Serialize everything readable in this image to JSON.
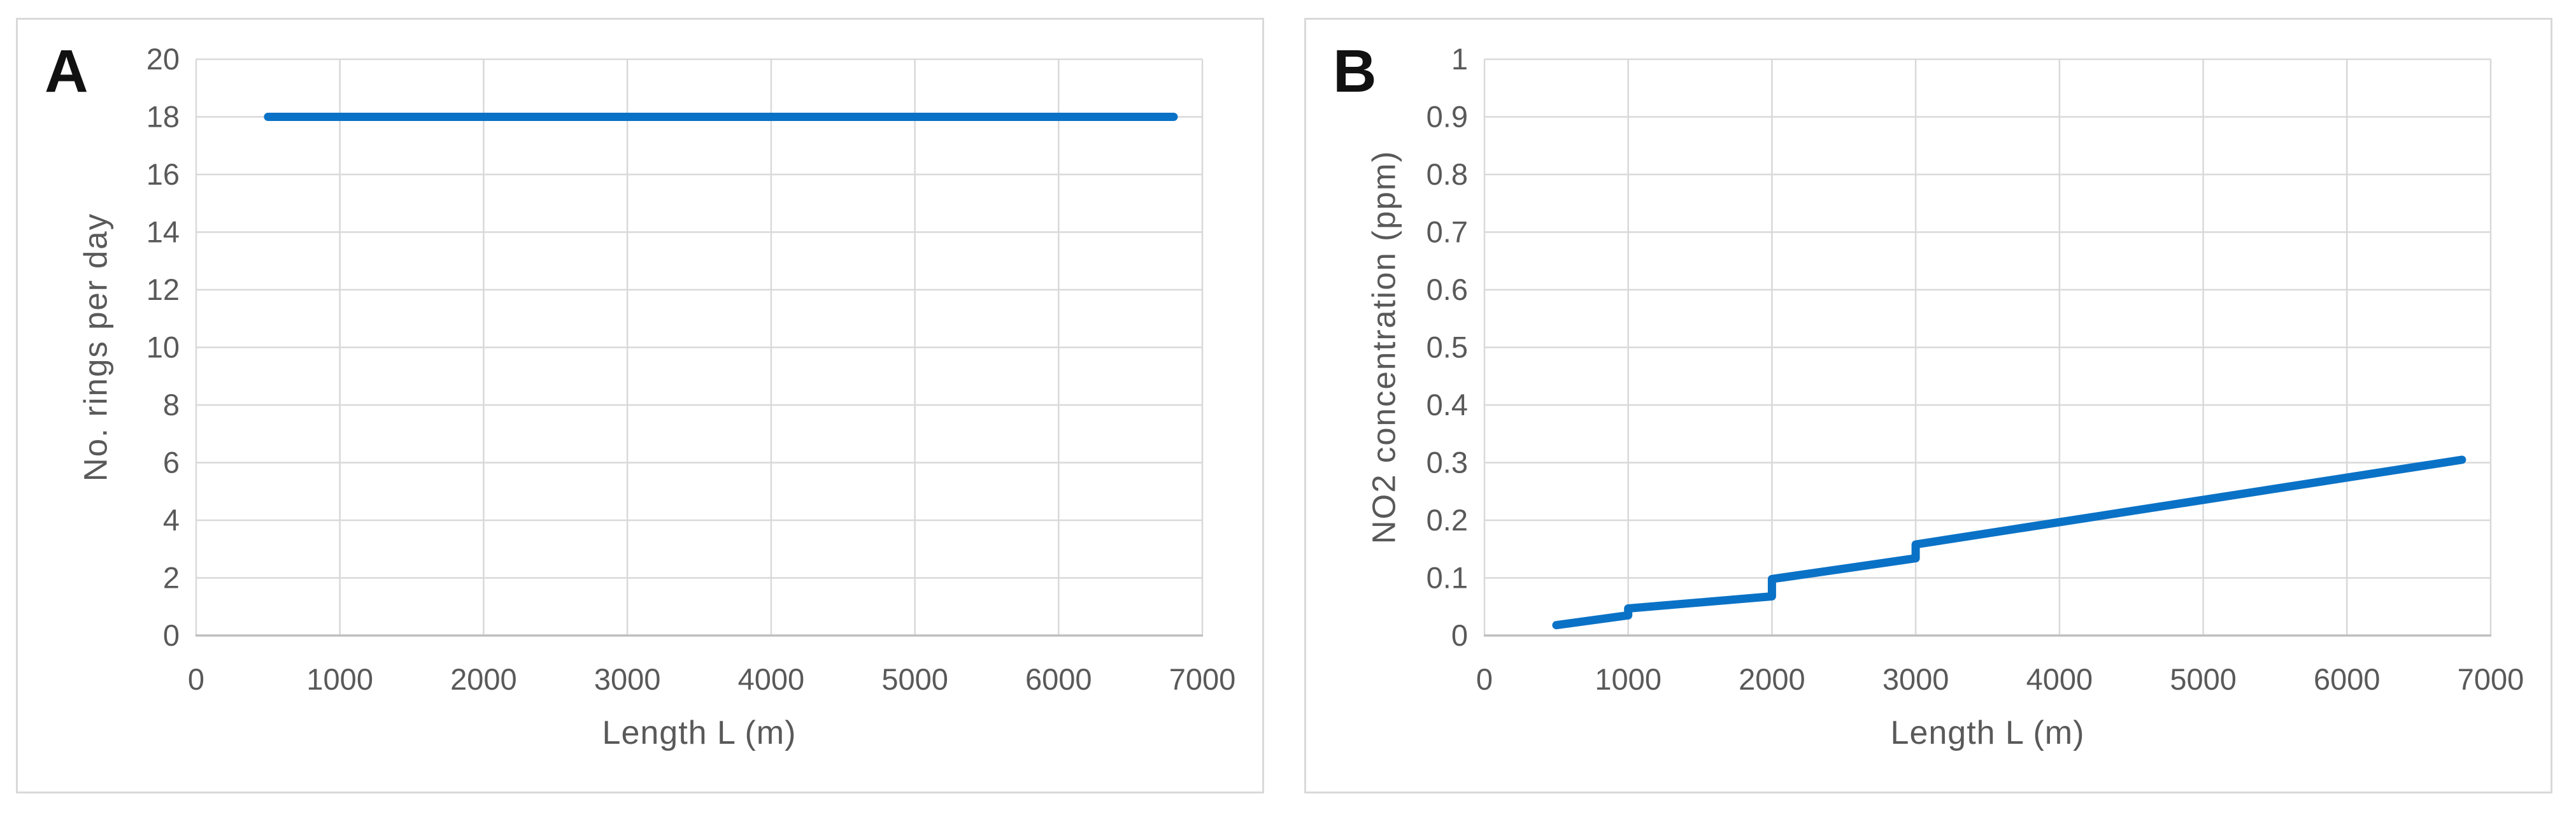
{
  "figure": {
    "background_color": "#ffffff",
    "description_labels": [
      "A",
      "B"
    ]
  },
  "style": {
    "panel_border_color": "#d9d9d9",
    "gridline_color": "#d9d9d9",
    "axis_line_color": "#bfbfbf",
    "tick_label_color": "#595959",
    "axis_title_color": "#595959",
    "panel_label_color": "#111111",
    "line_color": "#0a72c6"
  },
  "chart_data": [
    {
      "type": "line",
      "panel_label": "A",
      "xlabel": "Length L (m)",
      "ylabel": "No. rings per day",
      "xlim": [
        0,
        7000
      ],
      "ylim": [
        0,
        20
      ],
      "grid": true,
      "legend": null,
      "xtick_values": [
        0,
        1000,
        2000,
        3000,
        4000,
        5000,
        6000,
        7000
      ],
      "xtick_labels": [
        "0",
        "1000",
        "2000",
        "3000",
        "4000",
        "5000",
        "6000",
        "7000"
      ],
      "ytick_values": [
        0,
        2,
        4,
        6,
        8,
        10,
        12,
        14,
        16,
        18,
        20
      ],
      "ytick_labels": [
        "0",
        "2",
        "4",
        "6",
        "8",
        "10",
        "12",
        "14",
        "16",
        "18",
        "20"
      ],
      "series": [
        {
          "name": "No. rings per day",
          "color": "#0a72c6",
          "points": [
            [
              500,
              18
            ],
            [
              6800,
              18
            ]
          ]
        }
      ]
    },
    {
      "type": "line",
      "panel_label": "B",
      "xlabel": "Length L (m)",
      "ylabel": "NO2 concentration (ppm)",
      "xlim": [
        0,
        7000
      ],
      "ylim": [
        0,
        1
      ],
      "grid": true,
      "legend": null,
      "xtick_values": [
        0,
        1000,
        2000,
        3000,
        4000,
        5000,
        6000,
        7000
      ],
      "xtick_labels": [
        "0",
        "1000",
        "2000",
        "3000",
        "4000",
        "5000",
        "6000",
        "7000"
      ],
      "ytick_values": [
        0,
        0.1,
        0.2,
        0.3,
        0.4,
        0.5,
        0.6,
        0.7,
        0.8,
        0.9,
        1
      ],
      "ytick_labels": [
        "0",
        "0.1",
        "0.2",
        "0.3",
        "0.4",
        "0.5",
        "0.6",
        "0.7",
        "0.8",
        "0.9",
        "1"
      ],
      "series": [
        {
          "name": "NO2 concentration (ppm)",
          "color": "#0a72c6",
          "points": [
            [
              500,
              0.018
            ],
            [
              1000,
              0.035
            ],
            [
              1000,
              0.047
            ],
            [
              2000,
              0.068
            ],
            [
              2000,
              0.098
            ],
            [
              3000,
              0.134
            ],
            [
              3000,
              0.158
            ],
            [
              6800,
              0.305
            ]
          ]
        }
      ]
    }
  ]
}
